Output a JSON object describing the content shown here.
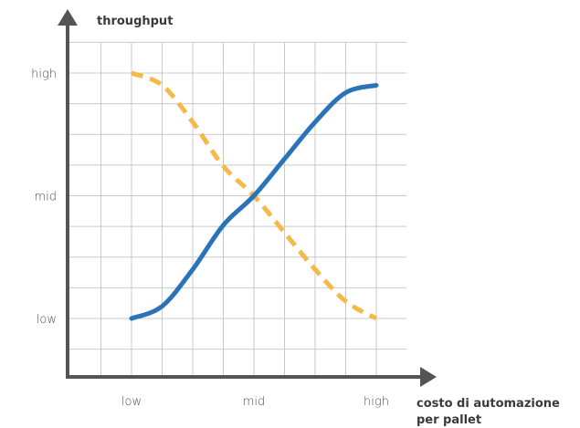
{
  "chart_data": {
    "type": "line",
    "xlabel": "costo di automazione per pallet",
    "xlabel_lines": [
      "costo di automazione",
      "per pallet"
    ],
    "ylabel": "throughput",
    "x_ticks": [
      "low",
      "mid",
      "high"
    ],
    "y_ticks": [
      "low",
      "mid",
      "high"
    ],
    "xlim": [
      0,
      1
    ],
    "ylim": [
      0,
      1
    ],
    "grid": true,
    "series": [
      {
        "style": "solid",
        "color": "#2a73b8",
        "x": [
          0,
          0.125,
          0.25,
          0.375,
          0.5,
          0.625,
          0.75,
          0.875,
          1.0
        ],
        "y": [
          0,
          0.05,
          0.2,
          0.38,
          0.5,
          0.65,
          0.8,
          0.92,
          0.95
        ]
      },
      {
        "style": "dashed",
        "color": "#f5b94a",
        "x": [
          0,
          0.125,
          0.25,
          0.375,
          0.5,
          0.625,
          0.75,
          0.875,
          1.0
        ],
        "y": [
          1.0,
          0.95,
          0.8,
          0.62,
          0.5,
          0.35,
          0.2,
          0.07,
          0
        ]
      }
    ]
  }
}
